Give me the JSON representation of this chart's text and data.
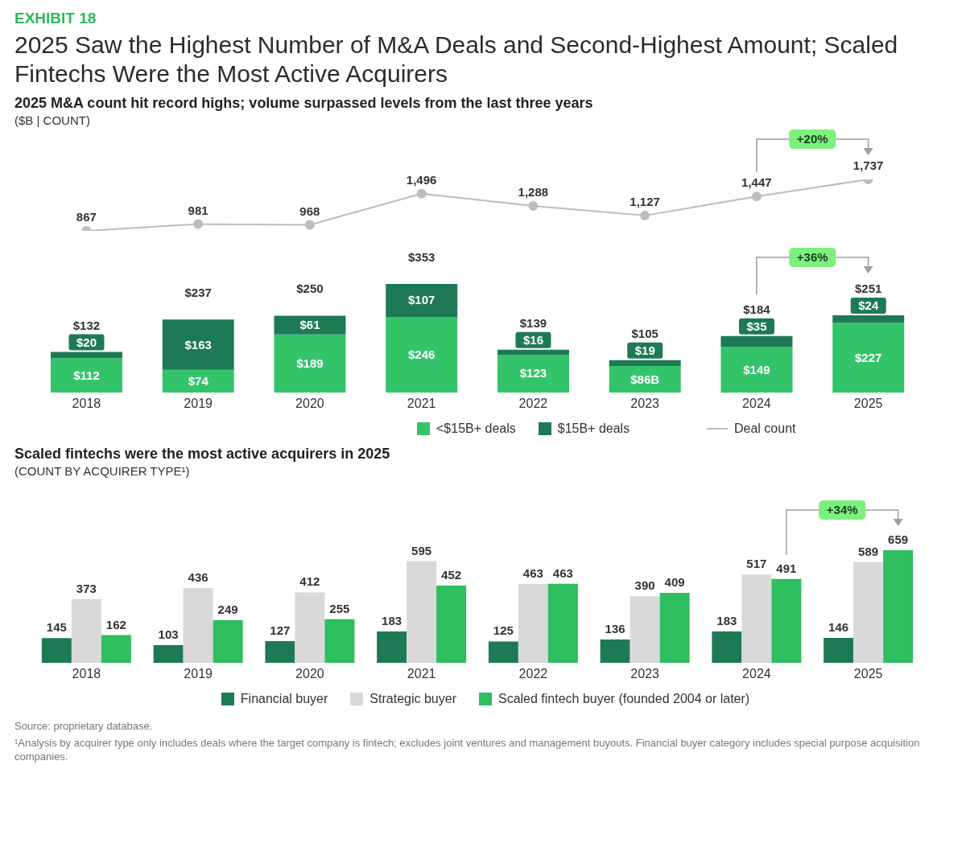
{
  "chart_data": [
    {
      "type": "line",
      "title": "2025 M&A count hit record highs; volume surpassed levels from the last three years",
      "subtitle": "($B | COUNT)",
      "annotations": [
        "EXHIBIT 18",
        "2025 Saw the Highest Number of M&A Deals and Second-Highest Amount; Scaled Fintechs Were the Most Active Acquirers",
        "+20%"
      ],
      "categories": [
        "2018",
        "2019",
        "2020",
        "2021",
        "2022",
        "2023",
        "2024",
        "2025"
      ],
      "tick_labels": false,
      "series": [
        {
          "name": "Deal count",
          "color": "#bdbdbd",
          "marker": "circle",
          "values": [
            867,
            981,
            968,
            1496,
            1288,
            1127,
            1447,
            1737
          ],
          "value_labels": [
            "867",
            "981",
            "968",
            "1,496",
            "1,288",
            "1,127",
            "1,447",
            "1,737"
          ]
        }
      ],
      "legend": "bottom"
    },
    {
      "type": "bar",
      "stacked": true,
      "annotations": [
        "+36%"
      ],
      "categories": [
        "2018",
        "2019",
        "2020",
        "2021",
        "2022",
        "2023",
        "2024",
        "2025"
      ],
      "series": [
        {
          "name": "<$15B+ deals",
          "color": "#33c46a",
          "values": [
            112,
            74,
            189,
            246,
            123,
            86,
            149,
            227
          ],
          "value_labels": [
            "$112",
            "$74",
            "$189",
            "$246",
            "$123",
            "$86B",
            "$149",
            "$227"
          ]
        },
        {
          "name": "$15B+ deals",
          "color": "#1e7a55",
          "values": [
            20,
            163,
            61,
            107,
            16,
            19,
            35,
            24
          ],
          "value_labels": [
            "$20",
            "$163",
            "$61",
            "$107",
            "$16",
            "$19",
            "$35",
            "$24"
          ]
        }
      ],
      "totals": [
        "$132",
        "$237",
        "$250",
        "$353",
        "$139",
        "$105",
        "$184",
        "$251"
      ],
      "legend": "bottom"
    },
    {
      "type": "bar",
      "title": "Scaled fintechs were the most active acquirers in 2025",
      "subtitle": "(COUNT BY ACQUIRER TYPE¹)",
      "annotations": [
        "+34%",
        "Source: proprietary database.",
        "¹Analysis by acquirer type only includes deals where the target company is fintech; excludes joint ventures and management buyouts. Financial buyer category includes special purpose acquisition companies."
      ],
      "categories": [
        "2018",
        "2019",
        "2020",
        "2021",
        "2022",
        "2023",
        "2024",
        "2025"
      ],
      "series": [
        {
          "name": "Financial buyer",
          "color": "#1e7a55",
          "values": [
            145,
            103,
            127,
            183,
            125,
            136,
            183,
            146
          ]
        },
        {
          "name": "Strategic buyer",
          "color": "#d9d9d9",
          "values": [
            373,
            436,
            412,
            595,
            463,
            390,
            517,
            589
          ]
        },
        {
          "name": "Scaled fintech buyer (founded 2004 or later)",
          "color": "#2ebd5f",
          "values": [
            162,
            249,
            255,
            452,
            463,
            409,
            491,
            659
          ]
        }
      ],
      "data_labels": true,
      "legend": "bottom"
    }
  ]
}
